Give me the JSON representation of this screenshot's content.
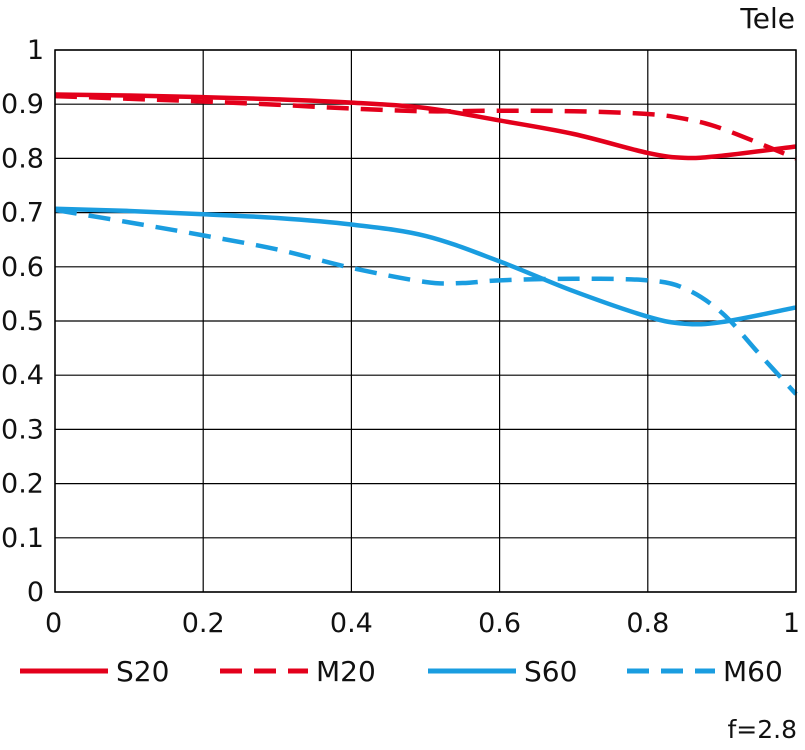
{
  "chart_data": {
    "type": "line",
    "title": "Tele",
    "note": "f=2.8",
    "xlabel": "",
    "ylabel": "",
    "xlim": [
      0,
      1
    ],
    "ylim": [
      0,
      1
    ],
    "x_ticks": [
      "0",
      "0.2",
      "0.4",
      "0.6",
      "0.8",
      "1"
    ],
    "y_ticks": [
      "0",
      "0.1",
      "0.2",
      "0.3",
      "0.4",
      "0.5",
      "0.6",
      "0.7",
      "0.8",
      "0.9",
      "1"
    ],
    "grid": true,
    "legend_position": "bottom",
    "series": [
      {
        "name": "S20",
        "color": "#e3001b",
        "dash": "solid",
        "points": [
          [
            0,
            0.918
          ],
          [
            0.1,
            0.916
          ],
          [
            0.2,
            0.913
          ],
          [
            0.3,
            0.909
          ],
          [
            0.4,
            0.903
          ],
          [
            0.5,
            0.893
          ],
          [
            0.6,
            0.87
          ],
          [
            0.7,
            0.845
          ],
          [
            0.8,
            0.81
          ],
          [
            0.85,
            0.801
          ],
          [
            0.9,
            0.805
          ],
          [
            1.0,
            0.822
          ]
        ]
      },
      {
        "name": "M20",
        "color": "#e3001b",
        "dash": "dashed",
        "points": [
          [
            0,
            0.915
          ],
          [
            0.1,
            0.91
          ],
          [
            0.2,
            0.905
          ],
          [
            0.3,
            0.899
          ],
          [
            0.4,
            0.892
          ],
          [
            0.5,
            0.887
          ],
          [
            0.6,
            0.888
          ],
          [
            0.7,
            0.887
          ],
          [
            0.8,
            0.882
          ],
          [
            0.85,
            0.873
          ],
          [
            0.9,
            0.855
          ],
          [
            1.0,
            0.8
          ]
        ]
      },
      {
        "name": "S60",
        "color": "#1a9de0",
        "dash": "solid",
        "points": [
          [
            0,
            0.707
          ],
          [
            0.1,
            0.703
          ],
          [
            0.2,
            0.697
          ],
          [
            0.3,
            0.69
          ],
          [
            0.4,
            0.678
          ],
          [
            0.5,
            0.657
          ],
          [
            0.6,
            0.61
          ],
          [
            0.7,
            0.555
          ],
          [
            0.8,
            0.508
          ],
          [
            0.85,
            0.495
          ],
          [
            0.9,
            0.498
          ],
          [
            1.0,
            0.525
          ]
        ]
      },
      {
        "name": "M60",
        "color": "#1a9de0",
        "dash": "dashed",
        "points": [
          [
            0,
            0.705
          ],
          [
            0.1,
            0.682
          ],
          [
            0.2,
            0.658
          ],
          [
            0.3,
            0.632
          ],
          [
            0.4,
            0.598
          ],
          [
            0.5,
            0.572
          ],
          [
            0.55,
            0.57
          ],
          [
            0.6,
            0.575
          ],
          [
            0.7,
            0.578
          ],
          [
            0.8,
            0.575
          ],
          [
            0.85,
            0.56
          ],
          [
            0.9,
            0.515
          ],
          [
            0.95,
            0.44
          ],
          [
            1.0,
            0.365
          ]
        ]
      }
    ]
  }
}
